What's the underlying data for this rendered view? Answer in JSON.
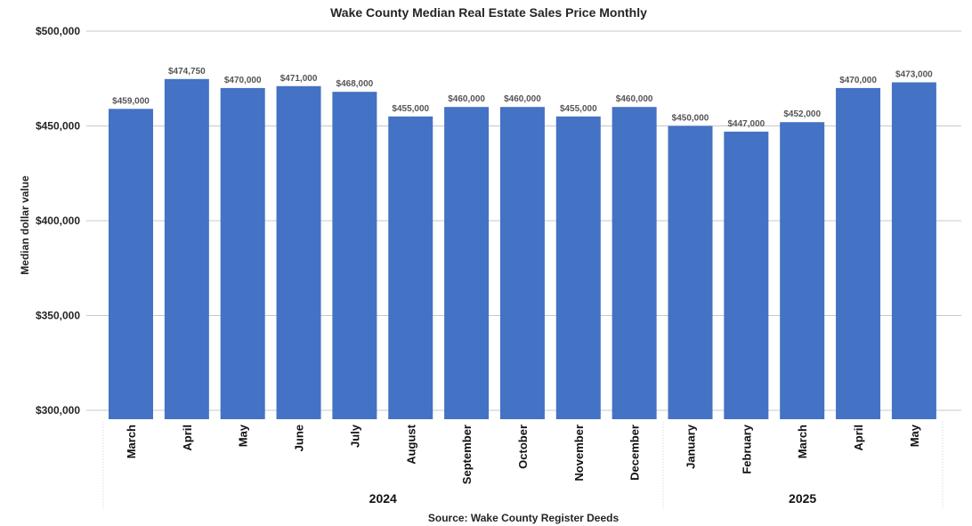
{
  "chart_data": {
    "type": "bar",
    "title": "Wake County Median Real Estate Sales Price Monthly",
    "ylabel": "Median dollar value",
    "xlabel": "",
    "source": "Source: Wake County Register Deeds",
    "ylim": [
      300000,
      500000
    ],
    "yticks": [
      300000,
      350000,
      400000,
      450000,
      500000
    ],
    "ytick_labels": [
      "$300,000",
      "$350,000",
      "$400,000",
      "$450,000",
      "$500,000"
    ],
    "grid": true,
    "bar_color": "#4472C4",
    "categories": [
      "March",
      "April",
      "May",
      "June",
      "July",
      "August",
      "September",
      "October",
      "November",
      "December",
      "January",
      "February",
      "March",
      "April",
      "May"
    ],
    "values": [
      459000,
      474750,
      470000,
      471000,
      468000,
      455000,
      460000,
      460000,
      455000,
      460000,
      450000,
      447000,
      452000,
      470000,
      473000
    ],
    "value_labels": [
      "$459,000",
      "$474,750",
      "$470,000",
      "$471,000",
      "$468,000",
      "$455,000",
      "$460,000",
      "$460,000",
      "$455,000",
      "$460,000",
      "$450,000",
      "$447,000",
      "$452,000",
      "$470,000",
      "$473,000"
    ],
    "groups": [
      {
        "label": "2024",
        "start": 0,
        "end": 9
      },
      {
        "label": "2025",
        "start": 10,
        "end": 14
      }
    ]
  }
}
